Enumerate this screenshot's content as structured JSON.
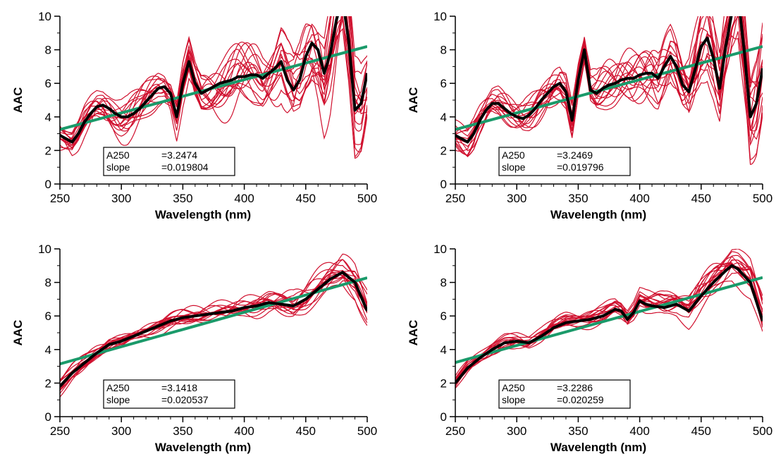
{
  "colors": {
    "samples": "#d0102e",
    "mean": "#000000",
    "fit": "#1a9a6a",
    "axis": "#000000"
  },
  "chart_data": [
    {
      "type": "line",
      "xlabel": "Wavelength (nm)",
      "ylabel": "AAC",
      "xlim": [
        250,
        500
      ],
      "ylim": [
        0,
        10
      ],
      "xticks": [
        250,
        300,
        350,
        400,
        450,
        500
      ],
      "yticks": [
        0,
        2,
        4,
        6,
        8,
        10
      ],
      "grid": false,
      "stats": [
        {
          "label": "A250",
          "value": "=3.2474"
        },
        {
          "label": "slope",
          "value": "=0.019804"
        }
      ],
      "fit": {
        "a250": 3.2474,
        "slope": 0.019804
      },
      "mean": {
        "x": [
          250,
          255,
          260,
          265,
          270,
          275,
          280,
          285,
          290,
          295,
          300,
          305,
          310,
          315,
          320,
          325,
          330,
          335,
          340,
          345,
          350,
          355,
          360,
          365,
          370,
          375,
          380,
          385,
          390,
          395,
          400,
          405,
          410,
          415,
          420,
          425,
          430,
          435,
          440,
          445,
          450,
          455,
          460,
          465,
          470,
          475,
          480,
          485,
          490,
          495,
          500
        ],
        "y": [
          2.9,
          2.7,
          2.5,
          3.0,
          3.7,
          4.2,
          4.6,
          4.7,
          4.5,
          4.2,
          4.0,
          4.0,
          4.2,
          4.5,
          4.9,
          5.3,
          5.7,
          5.8,
          5.4,
          4.0,
          6.0,
          7.3,
          6.0,
          5.4,
          5.6,
          5.8,
          6.0,
          6.1,
          6.2,
          6.4,
          6.4,
          6.5,
          6.5,
          6.3,
          6.6,
          6.9,
          7.3,
          6.2,
          5.6,
          6.2,
          7.6,
          8.4,
          8.0,
          6.6,
          7.8,
          9.8,
          11.0,
          8.5,
          4.4,
          4.8,
          6.6
        ]
      },
      "sample_count": 16
    },
    {
      "type": "line",
      "xlabel": "Wavelength (nm)",
      "ylabel": "AAC",
      "xlim": [
        250,
        500
      ],
      "ylim": [
        0,
        10
      ],
      "xticks": [
        250,
        300,
        350,
        400,
        450,
        500
      ],
      "yticks": [
        0,
        2,
        4,
        6,
        8,
        10
      ],
      "grid": false,
      "stats": [
        {
          "label": "A250",
          "value": "=3.2469"
        },
        {
          "label": "slope",
          "value": "=0.019796"
        }
      ],
      "fit": {
        "a250": 3.2469,
        "slope": 0.019796
      },
      "mean": {
        "x": [
          250,
          255,
          260,
          265,
          270,
          275,
          280,
          285,
          290,
          295,
          300,
          305,
          310,
          315,
          320,
          325,
          330,
          335,
          340,
          345,
          350,
          355,
          360,
          365,
          370,
          375,
          380,
          385,
          390,
          395,
          400,
          405,
          410,
          415,
          420,
          425,
          430,
          435,
          440,
          445,
          450,
          455,
          460,
          465,
          470,
          475,
          480,
          485,
          490,
          495,
          500
        ],
        "y": [
          2.9,
          2.7,
          2.5,
          3.0,
          3.8,
          4.4,
          4.8,
          4.8,
          4.5,
          4.2,
          4.0,
          3.9,
          4.1,
          4.5,
          5.0,
          5.4,
          5.8,
          6.0,
          5.5,
          3.8,
          6.2,
          8.0,
          5.6,
          5.4,
          5.7,
          5.9,
          6.0,
          6.2,
          6.3,
          6.3,
          6.5,
          6.6,
          6.6,
          6.3,
          7.0,
          7.6,
          7.0,
          5.9,
          5.5,
          6.8,
          8.2,
          8.7,
          7.5,
          5.7,
          8.2,
          10.2,
          11.2,
          8.0,
          4.0,
          4.8,
          6.9
        ]
      },
      "sample_count": 16
    },
    {
      "type": "line",
      "xlabel": "Wavelength (nm)",
      "ylabel": "AAC",
      "xlim": [
        250,
        500
      ],
      "ylim": [
        0,
        10
      ],
      "xticks": [
        250,
        300,
        350,
        400,
        450,
        500
      ],
      "yticks": [
        0,
        2,
        4,
        6,
        8,
        10
      ],
      "grid": false,
      "stats": [
        {
          "label": "A250",
          "value": "=3.1418"
        },
        {
          "label": "slope",
          "value": "=0.020537"
        }
      ],
      "fit": {
        "a250": 3.1418,
        "slope": 0.020537
      },
      "mean": {
        "x": [
          250,
          260,
          270,
          280,
          290,
          300,
          310,
          320,
          330,
          340,
          350,
          360,
          370,
          380,
          390,
          400,
          410,
          420,
          430,
          440,
          450,
          460,
          470,
          480,
          490,
          500
        ],
        "y": [
          1.8,
          2.6,
          3.2,
          3.8,
          4.3,
          4.5,
          4.8,
          5.1,
          5.4,
          5.7,
          5.9,
          6.0,
          6.1,
          6.2,
          6.3,
          6.5,
          6.6,
          6.8,
          6.7,
          6.6,
          7.0,
          7.6,
          8.2,
          8.6,
          8.0,
          6.3
        ]
      },
      "sample_count": 16
    },
    {
      "type": "line",
      "xlabel": "Wavelength (nm)",
      "ylabel": "AAC",
      "xlim": [
        250,
        500
      ],
      "ylim": [
        0,
        10
      ],
      "xticks": [
        250,
        300,
        350,
        400,
        450,
        500
      ],
      "yticks": [
        0,
        2,
        4,
        6,
        8,
        10
      ],
      "grid": false,
      "stats": [
        {
          "label": "A250",
          "value": "=3.2286"
        },
        {
          "label": "slope",
          "value": "=0.020259"
        }
      ],
      "fit": {
        "a250": 3.2286,
        "slope": 0.020259
      },
      "mean": {
        "x": [
          250,
          260,
          270,
          280,
          290,
          300,
          310,
          320,
          330,
          340,
          350,
          360,
          370,
          380,
          385,
          390,
          395,
          400,
          405,
          410,
          420,
          430,
          440,
          450,
          460,
          470,
          475,
          480,
          490,
          500
        ],
        "y": [
          2.0,
          2.9,
          3.5,
          4.0,
          4.4,
          4.5,
          4.4,
          4.8,
          5.3,
          5.6,
          5.7,
          5.8,
          6.0,
          6.4,
          6.3,
          5.8,
          6.2,
          6.9,
          6.7,
          6.6,
          6.5,
          6.7,
          6.3,
          7.2,
          8.0,
          8.7,
          9.0,
          8.8,
          8.0,
          5.7
        ]
      },
      "sample_count": 16
    }
  ]
}
